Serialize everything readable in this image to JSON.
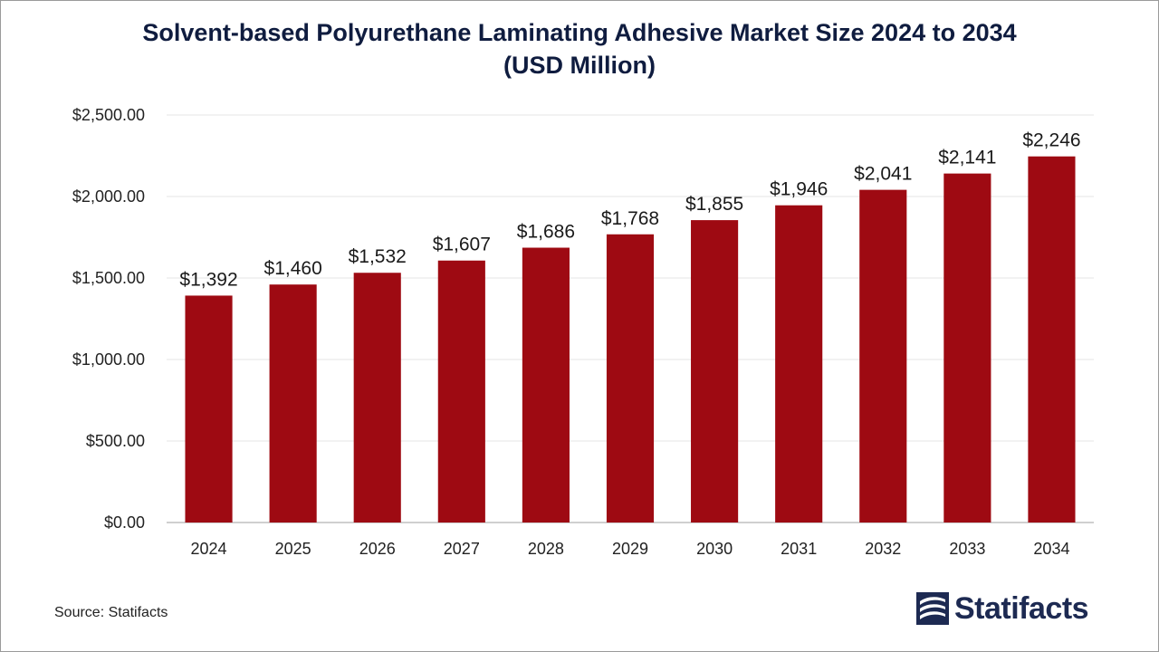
{
  "chart_data": {
    "type": "bar",
    "title_line1": "Solvent-based Polyurethane Laminating Adhesive Market Size 2024 to 2034",
    "title_line2": "(USD Million)",
    "categories": [
      "2024",
      "2025",
      "2026",
      "2027",
      "2028",
      "2029",
      "2030",
      "2031",
      "2032",
      "2033",
      "2034"
    ],
    "values": [
      1392,
      1460,
      1532,
      1607,
      1686,
      1768,
      1855,
      1946,
      2041,
      2141,
      2246
    ],
    "value_labels": [
      "$1,392",
      "$1,460",
      "$1,532",
      "$1,607",
      "$1,686",
      "$1,768",
      "$1,855",
      "$1,946",
      "$2,041",
      "$2,141",
      "$2,246"
    ],
    "y_ticks": [
      0,
      500,
      1000,
      1500,
      2000,
      2500
    ],
    "y_tick_labels": [
      "$0.00",
      "$500.00",
      "$1,000.00",
      "$1,500.00",
      "$2,000.00",
      "$2,500.00"
    ],
    "ylim": [
      0,
      2500
    ],
    "xlabel": "",
    "ylabel": "",
    "grid": true,
    "bar_color": "#9e0a12"
  },
  "footer": {
    "source": "Source: Statifacts",
    "brand": "Statifacts"
  },
  "colors": {
    "title": "#0f1c3f",
    "brand": "#1d2a52",
    "bar": "#9e0a12"
  }
}
